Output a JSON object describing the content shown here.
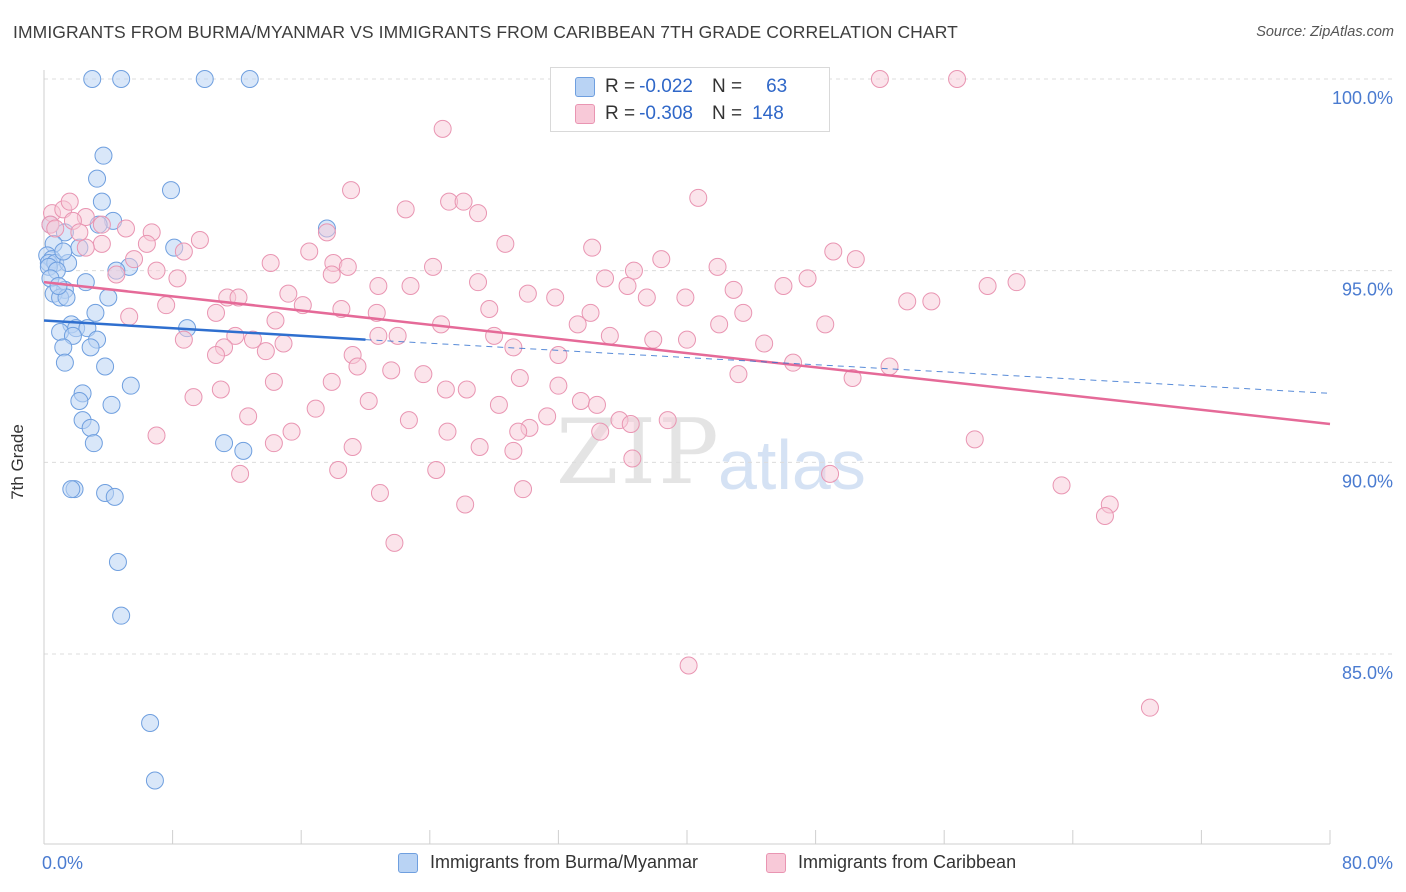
{
  "title": "IMMIGRANTS FROM BURMA/MYANMAR VS IMMIGRANTS FROM CARIBBEAN 7TH GRADE CORRELATION CHART",
  "source": "Source: ZipAtlas.com",
  "watermark": {
    "zip": "ZIP",
    "atlas": "atlas"
  },
  "legend": {
    "series1": {
      "r_label": "R =",
      "r_value": "-0.022",
      "n_label": "N =",
      "n_value": "63"
    },
    "series2": {
      "r_label": "R =",
      "r_value": "-0.308",
      "n_label": "N =",
      "n_value": "148"
    }
  },
  "chart_data": {
    "type": "scatter",
    "title": "IMMIGRANTS FROM BURMA/MYANMAR VS IMMIGRANTS FROM CARIBBEAN 7TH GRADE CORRELATION CHART",
    "xlabel": "",
    "ylabel": "7th Grade",
    "xlim": [
      0,
      80
    ],
    "ylim": [
      80.7,
      101.0
    ],
    "x_tick_labels": [
      "0.0%",
      "80.0%"
    ],
    "y_ticks": [
      85,
      90,
      95,
      100
    ],
    "y_tick_labels": [
      "85.0%",
      "90.0%",
      "95.0%",
      "100.0%"
    ],
    "grid": "horizontal dashed",
    "legend_position": "top-center",
    "colors": {
      "blue_fill": "#b9d3f4",
      "blue_edge": "#6f9fdf",
      "blue_line": "#2f6fcf",
      "pink_fill": "#f8c9d8",
      "pink_edge": "#e995b2",
      "pink_line": "#e56a98",
      "axis_text": "#4a7bd0"
    },
    "series": [
      {
        "name": "Immigrants from Burma/Myanmar",
        "trend": {
          "x": [
            0,
            20
          ],
          "y": [
            93.7,
            93.2
          ],
          "dashed_to": [
            80,
            91.8
          ]
        },
        "points": [
          [
            3.0,
            100.0
          ],
          [
            4.8,
            100.0
          ],
          [
            10.0,
            100.0
          ],
          [
            12.8,
            100.0
          ],
          [
            3.7,
            98.0
          ],
          [
            3.3,
            97.4
          ],
          [
            7.9,
            97.1
          ],
          [
            3.6,
            96.8
          ],
          [
            4.3,
            96.3
          ],
          [
            3.4,
            96.2
          ],
          [
            1.3,
            96.0
          ],
          [
            17.6,
            96.1
          ],
          [
            0.6,
            95.7
          ],
          [
            2.2,
            95.6
          ],
          [
            8.1,
            95.6
          ],
          [
            0.2,
            95.4
          ],
          [
            0.5,
            95.3
          ],
          [
            0.3,
            95.2
          ],
          [
            0.7,
            95.2
          ],
          [
            1.5,
            95.2
          ],
          [
            0.3,
            95.1
          ],
          [
            0.8,
            95.0
          ],
          [
            5.3,
            95.1
          ],
          [
            4.5,
            95.0
          ],
          [
            0.4,
            94.8
          ],
          [
            2.6,
            94.7
          ],
          [
            1.3,
            94.5
          ],
          [
            0.6,
            94.4
          ],
          [
            1.0,
            94.3
          ],
          [
            1.4,
            94.3
          ],
          [
            4.0,
            94.3
          ],
          [
            3.2,
            93.9
          ],
          [
            1.7,
            93.6
          ],
          [
            2.0,
            93.5
          ],
          [
            2.7,
            93.5
          ],
          [
            8.9,
            93.5
          ],
          [
            1.0,
            93.4
          ],
          [
            1.8,
            93.3
          ],
          [
            3.3,
            93.2
          ],
          [
            1.2,
            93.0
          ],
          [
            2.9,
            93.0
          ],
          [
            1.3,
            92.6
          ],
          [
            3.8,
            92.5
          ],
          [
            5.4,
            92.0
          ],
          [
            2.4,
            91.8
          ],
          [
            2.2,
            91.6
          ],
          [
            4.2,
            91.5
          ],
          [
            2.4,
            91.1
          ],
          [
            2.9,
            90.9
          ],
          [
            3.1,
            90.5
          ],
          [
            11.2,
            90.5
          ],
          [
            12.4,
            90.3
          ],
          [
            1.9,
            89.3
          ],
          [
            1.7,
            89.3
          ],
          [
            3.8,
            89.2
          ],
          [
            4.4,
            89.1
          ],
          [
            4.6,
            87.4
          ],
          [
            4.8,
            86.0
          ],
          [
            6.6,
            83.2
          ],
          [
            6.9,
            81.7
          ],
          [
            0.4,
            96.2
          ],
          [
            1.2,
            95.5
          ],
          [
            0.9,
            94.6
          ]
        ]
      },
      {
        "name": "Immigrants from Caribbean",
        "trend": {
          "x": [
            0,
            80
          ],
          "y": [
            94.7,
            91.0
          ]
        },
        "points": [
          [
            52.0,
            100.0
          ],
          [
            56.8,
            100.0
          ],
          [
            24.8,
            98.7
          ],
          [
            19.1,
            97.1
          ],
          [
            25.2,
            96.8
          ],
          [
            22.5,
            96.6
          ],
          [
            40.7,
            96.9
          ],
          [
            26.1,
            96.8
          ],
          [
            27.0,
            96.5
          ],
          [
            0.5,
            96.5
          ],
          [
            1.2,
            96.6
          ],
          [
            1.6,
            96.8
          ],
          [
            2.6,
            96.4
          ],
          [
            1.8,
            96.3
          ],
          [
            0.4,
            96.2
          ],
          [
            0.7,
            96.1
          ],
          [
            3.6,
            96.2
          ],
          [
            5.1,
            96.1
          ],
          [
            6.7,
            96.0
          ],
          [
            17.6,
            96.0
          ],
          [
            9.7,
            95.8
          ],
          [
            6.4,
            95.7
          ],
          [
            3.6,
            95.7
          ],
          [
            2.6,
            95.6
          ],
          [
            34.1,
            95.6
          ],
          [
            8.7,
            95.5
          ],
          [
            16.5,
            95.5
          ],
          [
            28.7,
            95.7
          ],
          [
            49.1,
            95.5
          ],
          [
            50.5,
            95.3
          ],
          [
            38.4,
            95.3
          ],
          [
            36.7,
            95.0
          ],
          [
            41.9,
            95.1
          ],
          [
            24.2,
            95.1
          ],
          [
            14.1,
            95.2
          ],
          [
            18.0,
            95.2
          ],
          [
            5.6,
            95.3
          ],
          [
            7.0,
            95.0
          ],
          [
            18.9,
            95.1
          ],
          [
            17.9,
            94.9
          ],
          [
            4.5,
            94.9
          ],
          [
            8.3,
            94.8
          ],
          [
            20.8,
            94.6
          ],
          [
            22.8,
            94.6
          ],
          [
            27.0,
            94.7
          ],
          [
            34.9,
            94.8
          ],
          [
            36.3,
            94.6
          ],
          [
            46.0,
            94.6
          ],
          [
            47.5,
            94.8
          ],
          [
            58.7,
            94.6
          ],
          [
            42.9,
            94.5
          ],
          [
            15.2,
            94.4
          ],
          [
            11.4,
            94.3
          ],
          [
            12.1,
            94.3
          ],
          [
            30.1,
            94.4
          ],
          [
            31.8,
            94.3
          ],
          [
            37.5,
            94.3
          ],
          [
            39.9,
            94.3
          ],
          [
            53.7,
            94.2
          ],
          [
            55.2,
            94.2
          ],
          [
            16.1,
            94.1
          ],
          [
            7.6,
            94.1
          ],
          [
            18.5,
            94.0
          ],
          [
            27.7,
            94.0
          ],
          [
            20.7,
            93.9
          ],
          [
            34.0,
            93.9
          ],
          [
            43.5,
            93.9
          ],
          [
            10.7,
            93.9
          ],
          [
            14.4,
            93.7
          ],
          [
            24.7,
            93.6
          ],
          [
            33.2,
            93.6
          ],
          [
            48.6,
            93.6
          ],
          [
            42.0,
            93.6
          ],
          [
            20.8,
            93.3
          ],
          [
            22.0,
            93.3
          ],
          [
            35.2,
            93.3
          ],
          [
            11.9,
            93.3
          ],
          [
            28.0,
            93.3
          ],
          [
            37.9,
            93.2
          ],
          [
            40.0,
            93.2
          ],
          [
            44.8,
            93.1
          ],
          [
            8.7,
            93.2
          ],
          [
            13.0,
            93.2
          ],
          [
            11.2,
            93.0
          ],
          [
            14.9,
            93.1
          ],
          [
            29.2,
            93.0
          ],
          [
            32.0,
            92.8
          ],
          [
            19.2,
            92.8
          ],
          [
            13.8,
            92.9
          ],
          [
            21.6,
            92.4
          ],
          [
            43.2,
            92.3
          ],
          [
            50.3,
            92.2
          ],
          [
            14.3,
            92.1
          ],
          [
            17.9,
            92.1
          ],
          [
            23.6,
            92.3
          ],
          [
            29.6,
            92.2
          ],
          [
            32.0,
            92.0
          ],
          [
            25.0,
            91.9
          ],
          [
            26.3,
            91.9
          ],
          [
            11.0,
            91.9
          ],
          [
            9.3,
            91.7
          ],
          [
            20.2,
            91.6
          ],
          [
            33.4,
            91.6
          ],
          [
            34.4,
            91.5
          ],
          [
            31.3,
            91.2
          ],
          [
            28.3,
            91.5
          ],
          [
            22.7,
            91.1
          ],
          [
            12.7,
            91.2
          ],
          [
            15.4,
            90.8
          ],
          [
            16.9,
            91.4
          ],
          [
            35.8,
            91.1
          ],
          [
            38.8,
            91.1
          ],
          [
            34.6,
            90.8
          ],
          [
            30.2,
            90.9
          ],
          [
            29.5,
            90.8
          ],
          [
            25.1,
            90.8
          ],
          [
            36.5,
            91.0
          ],
          [
            57.9,
            90.6
          ],
          [
            14.3,
            90.5
          ],
          [
            7.0,
            90.7
          ],
          [
            27.1,
            90.4
          ],
          [
            29.2,
            90.3
          ],
          [
            19.2,
            90.4
          ],
          [
            12.2,
            89.7
          ],
          [
            24.4,
            89.8
          ],
          [
            36.6,
            90.1
          ],
          [
            48.9,
            89.7
          ],
          [
            18.3,
            89.8
          ],
          [
            20.9,
            89.2
          ],
          [
            29.8,
            89.3
          ],
          [
            63.3,
            89.4
          ],
          [
            66.3,
            88.9
          ],
          [
            26.2,
            88.9
          ],
          [
            66.0,
            88.6
          ],
          [
            21.8,
            87.9
          ],
          [
            40.1,
            84.7
          ],
          [
            68.8,
            83.6
          ],
          [
            5.3,
            93.8
          ],
          [
            2.2,
            96.0
          ],
          [
            60.5,
            94.7
          ],
          [
            46.6,
            92.6
          ],
          [
            52.6,
            92.5
          ],
          [
            19.5,
            92.5
          ],
          [
            10.7,
            92.8
          ]
        ]
      }
    ]
  },
  "bottom_legend": {
    "series1_label": "Immigrants from Burma/Myanmar",
    "series2_label": "Immigrants from Caribbean"
  }
}
